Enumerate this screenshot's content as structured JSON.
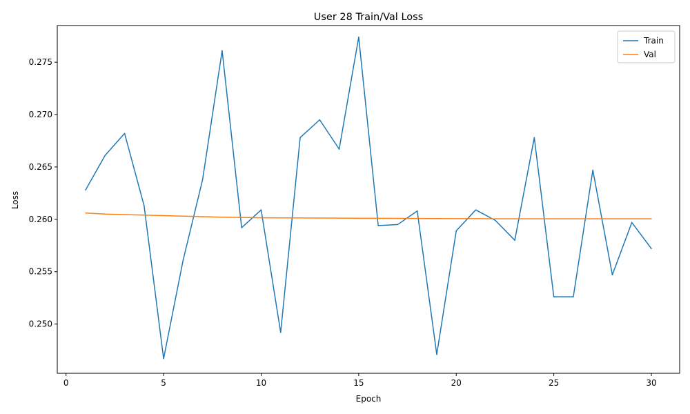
{
  "chart_data": {
    "type": "line",
    "title": "User 28 Train/Val Loss",
    "xlabel": "Epoch",
    "ylabel": "Loss",
    "xlim": [
      -0.45,
      31.45
    ],
    "ylim": [
      0.2453,
      0.2785
    ],
    "x_ticks": [
      0,
      5,
      10,
      15,
      20,
      25,
      30
    ],
    "y_ticks": [
      0.25,
      0.255,
      0.26,
      0.265,
      0.27,
      0.275
    ],
    "grid": false,
    "legend_position": "top-right",
    "x": [
      1,
      2,
      3,
      4,
      5,
      6,
      7,
      8,
      9,
      10,
      11,
      12,
      13,
      14,
      15,
      16,
      17,
      18,
      19,
      20,
      21,
      22,
      23,
      24,
      25,
      26,
      27,
      28,
      29,
      30
    ],
    "series": [
      {
        "name": "Train",
        "color": "#1f77b4",
        "values": [
          0.2628,
          0.2661,
          0.2682,
          0.2613,
          0.2467,
          0.2561,
          0.2638,
          0.2761,
          0.2592,
          0.2609,
          0.2492,
          0.2678,
          0.2695,
          0.2667,
          0.2774,
          0.2594,
          0.2595,
          0.2608,
          0.2471,
          0.2589,
          0.2609,
          0.2599,
          0.258,
          0.2678,
          0.2526,
          0.2526,
          0.2647,
          0.2547,
          0.2597,
          0.2572
        ]
      },
      {
        "name": "Val",
        "color": "#ff7f0e",
        "values": [
          0.2606,
          0.2605,
          0.26045,
          0.2604,
          0.26035,
          0.2603,
          0.26025,
          0.2602,
          0.26018,
          0.26015,
          0.26014,
          0.26013,
          0.26012,
          0.26011,
          0.2601,
          0.2601,
          0.26009,
          0.26008,
          0.26007,
          0.26006,
          0.26006,
          0.26005,
          0.26005,
          0.26005,
          0.26005,
          0.26005,
          0.26005,
          0.26005,
          0.26005,
          0.26005
        ]
      }
    ]
  }
}
